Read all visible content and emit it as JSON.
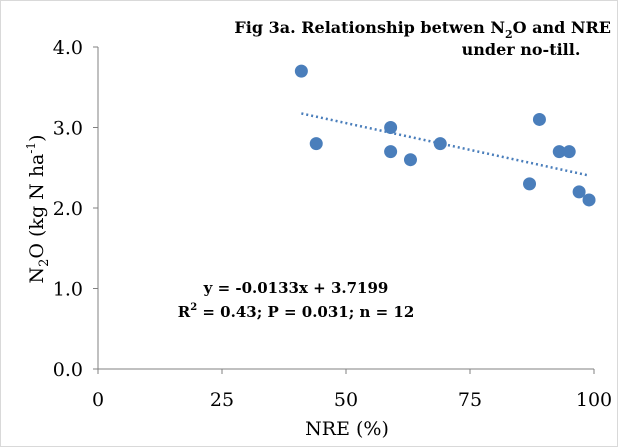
{
  "chart_data": {
    "type": "scatter",
    "title_line1": "Fig 3a. Relationship betwen N",
    "title_sub": "2",
    "title_line1_tail": "O and NRE",
    "title_line2": "under no-till.",
    "xlabel": "NRE (%)",
    "ylabel_prefix": "N",
    "ylabel_sub": "2",
    "ylabel_main": "O (kg N ha",
    "ylabel_sup": "-1",
    "ylabel_close": ")",
    "xlim": [
      0,
      100
    ],
    "ylim": [
      0,
      4
    ],
    "x_ticks": [
      "0",
      "25",
      "50",
      "75",
      "100"
    ],
    "x_tick_values": [
      0,
      25,
      50,
      75,
      100
    ],
    "y_ticks": [
      "0.0",
      "1.0",
      "2.0",
      "3.0",
      "4.0"
    ],
    "y_tick_values": [
      0,
      1,
      2,
      3,
      4
    ],
    "grid": false,
    "points": [
      {
        "x": 41,
        "y": 3.7
      },
      {
        "x": 44,
        "y": 2.8
      },
      {
        "x": 59,
        "y": 3.0
      },
      {
        "x": 59,
        "y": 2.7
      },
      {
        "x": 63,
        "y": 2.6
      },
      {
        "x": 69,
        "y": 2.8
      },
      {
        "x": 87,
        "y": 2.3
      },
      {
        "x": 89,
        "y": 3.1
      },
      {
        "x": 93,
        "y": 2.7
      },
      {
        "x": 95,
        "y": 2.7
      },
      {
        "x": 97,
        "y": 2.2
      },
      {
        "x": 99,
        "y": 2.1
      }
    ],
    "trendline": {
      "slope": -0.0133,
      "intercept": 3.7199,
      "x_range": [
        41,
        99
      ],
      "style": "dotted"
    },
    "equation": "y = -0.0133x + 3.7199",
    "stats_r": "R",
    "stats_sup": "2",
    "stats_tail": " = 0.43; P = 0.031; n = 12",
    "point_color": "#4a7ebb",
    "axis_color": "#808080"
  }
}
